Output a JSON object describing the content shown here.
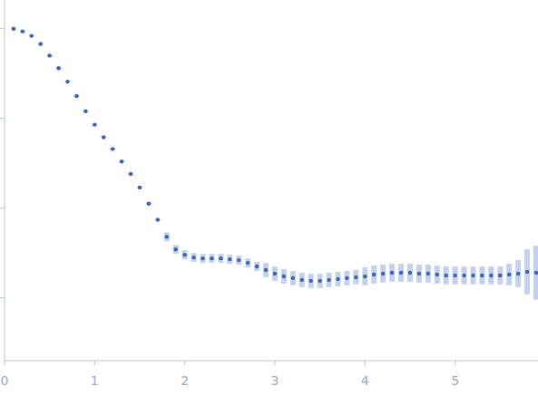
{
  "chart_data": {
    "type": "scatter",
    "color": "#3a63b8",
    "marker": "circle",
    "tick_labels": "x",
    "xlim": [
      0,
      5.92
    ],
    "xticks": [
      0,
      1,
      2,
      3,
      4,
      5
    ],
    "ylim": [
      -0.7,
      3.32
    ],
    "yticks": [
      0,
      1,
      2,
      3
    ],
    "x": [
      0.1,
      0.2,
      0.3,
      0.4,
      0.5,
      0.6,
      0.7,
      0.8,
      0.9,
      1.0,
      1.1,
      1.2,
      1.3,
      1.4,
      1.5,
      1.6,
      1.7,
      1.8,
      1.9,
      2.0,
      2.1,
      2.2,
      2.3,
      2.4,
      2.5,
      2.6,
      2.7,
      2.8,
      2.9,
      3.0,
      3.1,
      3.2,
      3.3,
      3.4,
      3.5,
      3.6,
      3.7,
      3.8,
      3.9,
      4.0,
      4.1,
      4.2,
      4.3,
      4.4,
      4.5,
      4.6,
      4.7,
      4.8,
      4.9,
      5.0,
      5.1,
      5.2,
      5.3,
      5.4,
      5.5,
      5.6,
      5.7,
      5.8,
      5.9
    ],
    "values": [
      3.0,
      2.97,
      2.92,
      2.83,
      2.7,
      2.56,
      2.41,
      2.25,
      2.08,
      1.93,
      1.79,
      1.66,
      1.52,
      1.38,
      1.23,
      1.05,
      0.87,
      0.68,
      0.54,
      0.48,
      0.45,
      0.44,
      0.44,
      0.44,
      0.43,
      0.42,
      0.39,
      0.35,
      0.31,
      0.27,
      0.24,
      0.22,
      0.2,
      0.19,
      0.19,
      0.2,
      0.21,
      0.22,
      0.23,
      0.24,
      0.26,
      0.27,
      0.28,
      0.28,
      0.28,
      0.27,
      0.27,
      0.26,
      0.25,
      0.25,
      0.25,
      0.25,
      0.25,
      0.25,
      0.25,
      0.26,
      0.27,
      0.29,
      0.28
    ],
    "errors": [
      0.01,
      0.01,
      0.01,
      0.01,
      0.01,
      0.01,
      0.01,
      0.01,
      0.01,
      0.01,
      0.01,
      0.01,
      0.01,
      0.01,
      0.01,
      0.01,
      0.01,
      0.05,
      0.05,
      0.05,
      0.05,
      0.05,
      0.05,
      0.05,
      0.05,
      0.05,
      0.05,
      0.05,
      0.08,
      0.08,
      0.08,
      0.08,
      0.08,
      0.08,
      0.08,
      0.08,
      0.08,
      0.08,
      0.08,
      0.1,
      0.1,
      0.1,
      0.1,
      0.1,
      0.1,
      0.1,
      0.1,
      0.1,
      0.1,
      0.1,
      0.1,
      0.1,
      0.1,
      0.1,
      0.1,
      0.12,
      0.15,
      0.25,
      0.3
    ]
  }
}
